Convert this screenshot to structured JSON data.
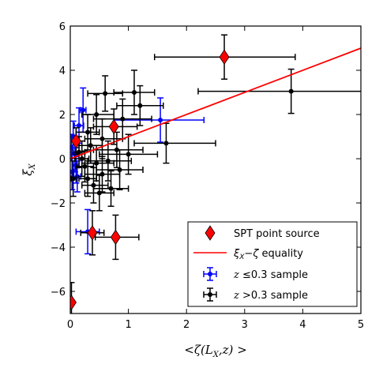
{
  "chart_data": {
    "type": "scatter",
    "xlabel": "<ζ(L_X,z)>",
    "ylabel": "ξ_X",
    "xlim": [
      0,
      5
    ],
    "ylim": [
      -7,
      6
    ],
    "x_ticks": [
      "0",
      "1",
      "2",
      "3",
      "4",
      "5"
    ],
    "y_ticks": [
      "−6",
      "−4",
      "−2",
      "0",
      "2",
      "4",
      "6"
    ],
    "grid": false,
    "legend_position": "lower-right",
    "legend": [
      {
        "label": "SPT point source",
        "marker": "diamond",
        "color": "#ff0000"
      },
      {
        "label": "ξX−ζ equality",
        "marker": "line",
        "color": "#ff0000"
      },
      {
        "label": "z ≤0.3 sample",
        "marker": "errorbar",
        "color": "#0000ff"
      },
      {
        "label": "z >0.3 sample",
        "marker": "errorbar",
        "color": "#000000"
      }
    ],
    "equality_line": {
      "x": [
        0,
        5
      ],
      "y": [
        0,
        5
      ],
      "color": "#ff0000"
    },
    "series": [
      {
        "name": "SPT point source",
        "color": "#ff0000",
        "marker": "diamond",
        "points": [
          {
            "x": 2.65,
            "y": 4.6,
            "xerr": [
              1.2,
              1.22
            ],
            "yerr": [
              1.0,
              1.0
            ]
          },
          {
            "x": 0.75,
            "y": 1.45,
            "xerr": [
              0.35,
              0.4
            ],
            "yerr": [
              0.8,
              0.8
            ]
          },
          {
            "x": 0.1,
            "y": 0.8,
            "xerr": [
              0.05,
              0.05
            ],
            "yerr": [
              0.6,
              0.6
            ]
          },
          {
            "x": 0.38,
            "y": -3.35,
            "xerr": [
              0.2,
              0.2
            ],
            "yerr": [
              1.0,
              1.0
            ]
          },
          {
            "x": 0.78,
            "y": -3.55,
            "xerr": [
              0.35,
              0.4
            ],
            "yerr": [
              1.0,
              1.0
            ]
          },
          {
            "x": 0.02,
            "y": -6.5,
            "xerr": [
              0.02,
              0.04
            ],
            "yerr": [
              0.9,
              0.9
            ]
          }
        ]
      },
      {
        "name": "z ≤0.3 sample",
        "color": "#0000ff",
        "marker": "dot",
        "points": [
          {
            "x": 0.22,
            "y": 2.2,
            "xerr": [
              0.05,
              0.05
            ],
            "yerr": [
              1.0,
              1.0
            ]
          },
          {
            "x": 0.15,
            "y": 1.5,
            "xerr": [
              0.08,
              0.08
            ],
            "yerr": [
              0.8,
              0.8
            ]
          },
          {
            "x": 0.05,
            "y": 1.0,
            "xerr": [
              0.05,
              0.05
            ],
            "yerr": [
              0.7,
              0.7
            ]
          },
          {
            "x": 1.55,
            "y": 1.75,
            "xerr": [
              0.8,
              0.75
            ],
            "yerr": [
              1.0,
              1.0
            ]
          },
          {
            "x": 0.08,
            "y": 0.2,
            "xerr": [
              0.05,
              0.05
            ],
            "yerr": [
              0.8,
              0.8
            ]
          },
          {
            "x": 0.1,
            "y": -0.3,
            "xerr": [
              0.05,
              0.05
            ],
            "yerr": [
              0.8,
              0.8
            ]
          },
          {
            "x": 0.12,
            "y": -0.8,
            "xerr": [
              0.06,
              0.06
            ],
            "yerr": [
              0.7,
              0.7
            ]
          },
          {
            "x": 0.03,
            "y": -0.6,
            "xerr": [
              0.03,
              0.03
            ],
            "yerr": [
              0.8,
              0.8
            ]
          },
          {
            "x": 0.02,
            "y": 0.5,
            "xerr": [
              0.02,
              0.02
            ],
            "yerr": [
              0.6,
              0.6
            ]
          },
          {
            "x": 0.3,
            "y": -3.3,
            "xerr": [
              0.2,
              0.2
            ],
            "yerr": [
              1.0,
              1.0
            ]
          }
        ]
      },
      {
        "name": "z >0.3 sample",
        "color": "#000000",
        "marker": "dot",
        "points": [
          {
            "x": 3.8,
            "y": 3.05,
            "xerr": [
              1.6,
              1.7
            ],
            "yerr": [
              1.0,
              1.0
            ]
          },
          {
            "x": 1.65,
            "y": 0.7,
            "xerr": [
              0.55,
              0.85
            ],
            "yerr": [
              0.9,
              0.9
            ]
          },
          {
            "x": 1.2,
            "y": 2.4,
            "xerr": [
              0.4,
              0.4
            ],
            "yerr": [
              0.9,
              0.9
            ]
          },
          {
            "x": 1.1,
            "y": 3.0,
            "xerr": [
              0.35,
              0.35
            ],
            "yerr": [
              1.0,
              1.0
            ]
          },
          {
            "x": 0.6,
            "y": 2.95,
            "xerr": [
              0.3,
              0.3
            ],
            "yerr": [
              0.8,
              0.8
            ]
          },
          {
            "x": 0.9,
            "y": 1.8,
            "xerr": [
              0.5,
              0.5
            ],
            "yerr": [
              0.9,
              0.9
            ]
          },
          {
            "x": 0.45,
            "y": 2.0,
            "xerr": [
              0.25,
              0.3
            ],
            "yerr": [
              0.9,
              0.9
            ]
          },
          {
            "x": 0.3,
            "y": 1.2,
            "xerr": [
              0.2,
              0.2
            ],
            "yerr": [
              0.8,
              0.8
            ]
          },
          {
            "x": 0.55,
            "y": 0.9,
            "xerr": [
              0.3,
              0.35
            ],
            "yerr": [
              0.9,
              0.9
            ]
          },
          {
            "x": 0.8,
            "y": 0.4,
            "xerr": [
              0.4,
              0.45
            ],
            "yerr": [
              0.8,
              0.8
            ]
          },
          {
            "x": 0.35,
            "y": 0.6,
            "xerr": [
              0.2,
              0.2
            ],
            "yerr": [
              0.8,
              0.8
            ]
          },
          {
            "x": 0.2,
            "y": 0.0,
            "xerr": [
              0.12,
              0.12
            ],
            "yerr": [
              0.8,
              0.8
            ]
          },
          {
            "x": 0.45,
            "y": -0.2,
            "xerr": [
              0.25,
              0.3
            ],
            "yerr": [
              0.8,
              0.8
            ]
          },
          {
            "x": 0.65,
            "y": -0.1,
            "xerr": [
              0.35,
              0.4
            ],
            "yerr": [
              0.9,
              0.9
            ]
          },
          {
            "x": 0.25,
            "y": -0.35,
            "xerr": [
              0.15,
              0.15
            ],
            "yerr": [
              0.7,
              0.7
            ]
          },
          {
            "x": 0.55,
            "y": -0.7,
            "xerr": [
              0.3,
              0.3
            ],
            "yerr": [
              0.8,
              0.8
            ]
          },
          {
            "x": 0.4,
            "y": -1.2,
            "xerr": [
              0.2,
              0.25
            ],
            "yerr": [
              0.8,
              0.8
            ]
          },
          {
            "x": 0.7,
            "y": -1.35,
            "xerr": [
              0.3,
              0.3
            ],
            "yerr": [
              0.8,
              0.8
            ]
          },
          {
            "x": 0.5,
            "y": -1.55,
            "xerr": [
              0.25,
              0.25
            ],
            "yerr": [
              0.8,
              0.8
            ]
          },
          {
            "x": 1.0,
            "y": 0.2,
            "xerr": [
              0.5,
              0.5
            ],
            "yerr": [
              0.9,
              0.9
            ]
          },
          {
            "x": 0.15,
            "y": 0.3,
            "xerr": [
              0.1,
              0.1
            ],
            "yerr": [
              0.7,
              0.7
            ]
          },
          {
            "x": 0.05,
            "y": -0.9,
            "xerr": [
              0.04,
              0.05
            ],
            "yerr": [
              0.8,
              0.8
            ]
          },
          {
            "x": 0.3,
            "y": -0.9,
            "xerr": [
              0.15,
              0.15
            ],
            "yerr": [
              0.8,
              0.8
            ]
          },
          {
            "x": 0.85,
            "y": -0.5,
            "xerr": [
              0.4,
              0.4
            ],
            "yerr": [
              0.9,
              0.9
            ]
          }
        ]
      }
    ]
  }
}
